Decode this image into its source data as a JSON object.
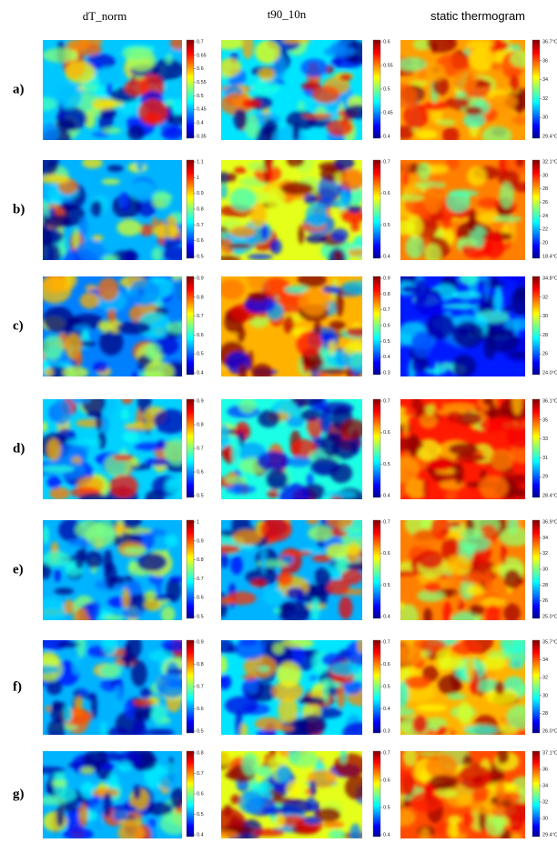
{
  "headers": [
    "dT_norm",
    "t90_10n",
    "static thermogram"
  ],
  "rows": [
    {
      "label": "a)",
      "colorbars": [
        [
          0.7,
          0.65,
          0.6,
          0.55,
          0.5,
          0.45,
          0.4,
          0.35
        ],
        [
          0.6,
          0.55,
          0.5,
          0.45,
          0.4
        ],
        [
          "36.7°C",
          36,
          34,
          32,
          30,
          "29.4°C"
        ]
      ]
    },
    {
      "label": "b)",
      "colorbars": [
        [
          1.1,
          1,
          0.9,
          0.8,
          0.7,
          0.6,
          0.5
        ],
        [
          0.7,
          0.6,
          0.5,
          0.4
        ],
        [
          "32.1°C",
          30,
          28,
          26,
          24,
          22,
          20,
          "18.4°C"
        ]
      ]
    },
    {
      "label": "c)",
      "colorbars": [
        [
          0.9,
          0.8,
          0.7,
          0.6,
          0.5,
          0.4
        ],
        [
          0.9,
          0.8,
          0.7,
          0.6,
          0.5,
          0.4,
          0.3
        ],
        [
          "34.8°C",
          32,
          30,
          28,
          26,
          "24.0°C"
        ]
      ]
    },
    {
      "label": "d)",
      "colorbars": [
        [
          0.9,
          0.8,
          0.7,
          0.6,
          0.5
        ],
        [
          0.7,
          0.6,
          0.5,
          0.4
        ],
        [
          "36.1°C",
          35,
          33,
          31,
          29,
          "28.4°C"
        ]
      ]
    },
    {
      "label": "e)",
      "colorbars": [
        [
          1,
          0.9,
          0.8,
          0.7,
          0.6,
          0.5
        ],
        [
          0.7,
          0.6,
          0.5,
          0.4
        ],
        [
          "36.9°C",
          34,
          32,
          30,
          28,
          26,
          "25.0°C"
        ]
      ]
    },
    {
      "label": "f)",
      "colorbars": [
        [
          0.9,
          0.8,
          0.7,
          0.6,
          0.5
        ],
        [
          0.7,
          0.6,
          0.5,
          0.4,
          0.3
        ],
        [
          "35.7°C",
          34,
          32,
          30,
          28,
          "26.0°C"
        ]
      ]
    },
    {
      "label": "g)",
      "colorbars": [
        [
          0.8,
          0.7,
          0.6,
          0.5,
          0.4
        ],
        [
          0.7,
          0.6,
          0.5,
          0.4
        ],
        [
          "37.1°C",
          36,
          34,
          32,
          30,
          "29.4°C"
        ]
      ]
    }
  ]
}
